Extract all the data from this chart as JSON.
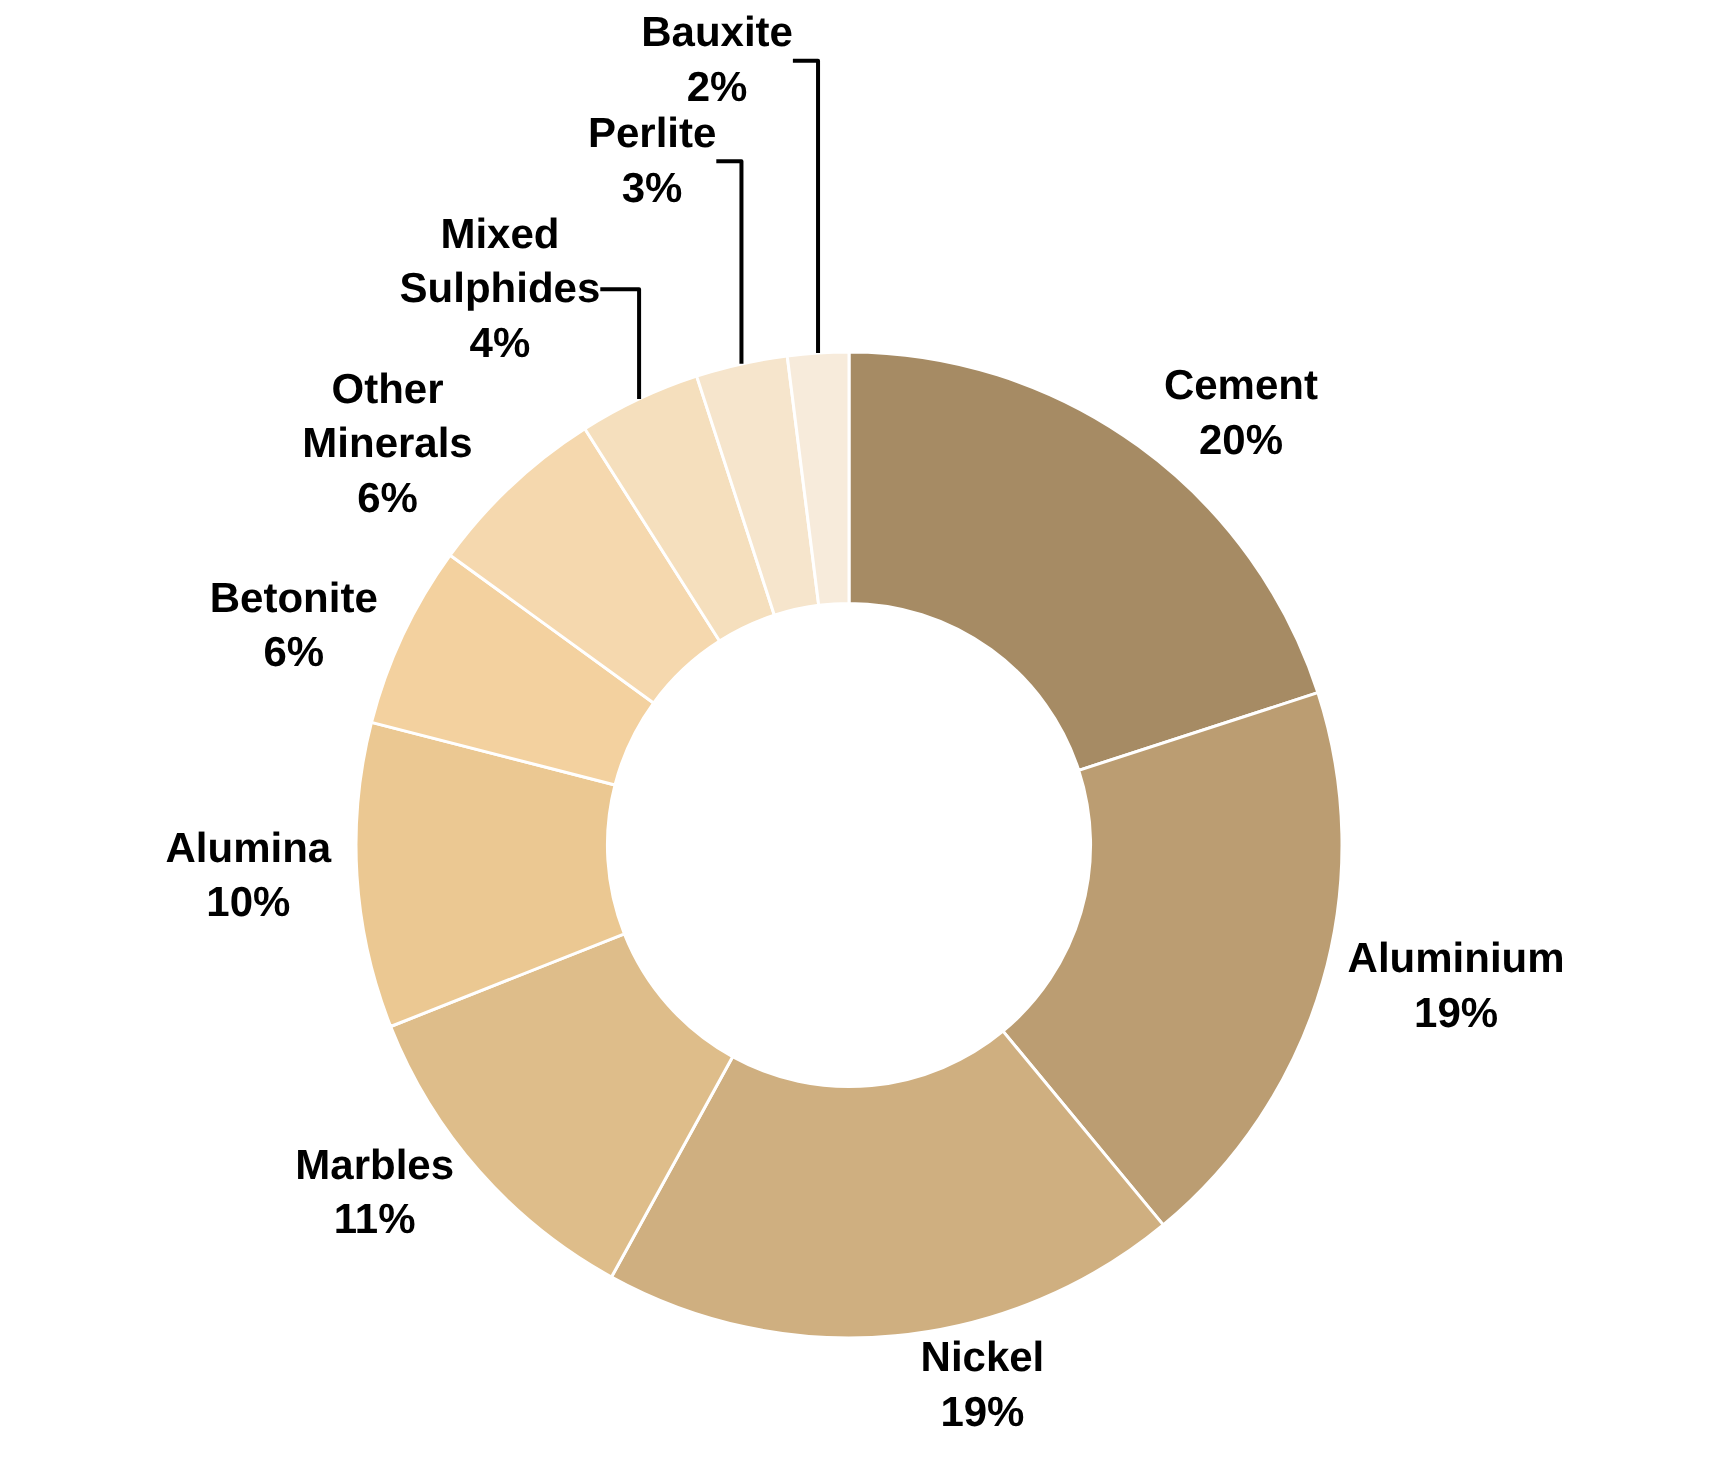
{
  "chart_data": {
    "type": "donut",
    "categories": [
      "Cement",
      "Aluminium",
      "Nickel",
      "Marbles",
      "Alumina",
      "Betonite",
      "Other Minerals",
      "Mixed Sulphides",
      "Perlite",
      "Bauxite"
    ],
    "values": [
      20,
      19,
      19,
      11,
      10,
      6,
      6,
      4,
      3,
      2
    ],
    "value_labels": [
      "20%",
      "19%",
      "19%",
      "11%",
      "10%",
      "6%",
      "6%",
      "4%",
      "3%",
      "2%"
    ],
    "colors": [
      "#a68b64",
      "#bb9d72",
      "#cfaf80",
      "#debd8a",
      "#ebc892",
      "#f3d19f",
      "#f5d8ae",
      "#f5dfbd",
      "#f6e5cc",
      "#f7ebdb"
    ],
    "legend": false
  }
}
